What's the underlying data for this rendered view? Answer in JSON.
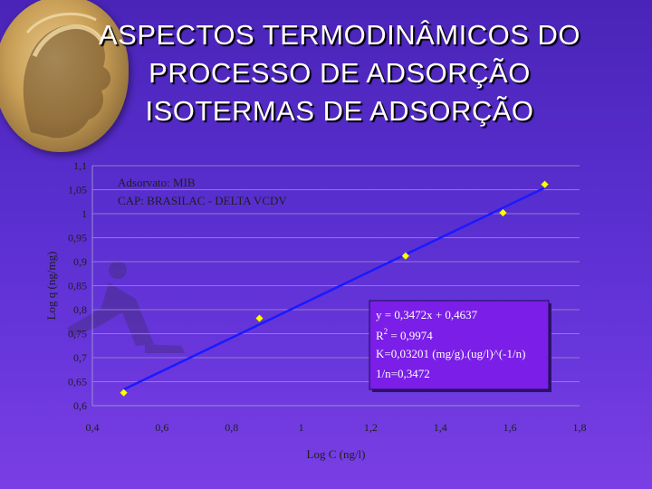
{
  "slide": {
    "title_lines": [
      "ASPECTOS TERMODINÂMICOS DO",
      "PROCESSO DE ADSORÇÃO",
      "ISOTERMAS DE ADSORÇÃO"
    ]
  },
  "colors": {
    "background": "#5a2fd0",
    "line": "#1a1aff",
    "markers": "#ffff00",
    "equation_box": "#7a1ee8"
  },
  "icons": [
    "medallion-helmet-logo",
    "runner-silhouette"
  ],
  "chart_data": {
    "type": "scatter",
    "xlabel": "Log C (ng/l)",
    "ylabel": "Log q (ng/mg)",
    "xlim": [
      0.4,
      1.8
    ],
    "ylim": [
      0.6,
      1.1
    ],
    "xticks": [
      "0,4",
      "0,6",
      "0,8",
      "1",
      "1,2",
      "1,4",
      "1,6",
      "1,8"
    ],
    "yticks": [
      "0,6",
      "0,65",
      "0,7",
      "0,75",
      "0,8",
      "0,85",
      "0,9",
      "0,95",
      "1",
      "1,05",
      "1,1"
    ],
    "grid": "horizontal",
    "annotations": [
      "Adsorvato: MIB",
      "CAP: BRASILAC - DELTA VCDV"
    ],
    "series": [
      {
        "x": [
          0.49,
          0.88,
          1.3,
          1.58,
          1.7
        ],
        "y": [
          0.627,
          0.782,
          0.912,
          1.002,
          1.061
        ]
      }
    ],
    "trendline": {
      "slope": 0.3472,
      "intercept": 0.4637,
      "x_range": [
        0.49,
        1.7
      ]
    },
    "equation_box": {
      "line1": "y = 0,3472x + 0,4637",
      "r2_prefix": "R",
      "r2_sup": "2",
      "r2_suffix": " = 0,9974",
      "line3": "K=0,03201 (mg/g).(ug/l)^(-1/n)",
      "line4": "1/n=0,3472"
    }
  }
}
